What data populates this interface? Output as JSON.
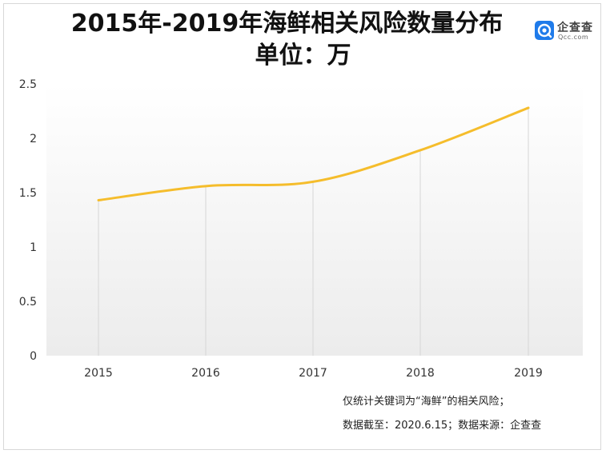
{
  "header": {
    "title_line1": "2015年-2019年海鲜相关风险数量分布",
    "title_line2": "单位：万"
  },
  "logo": {
    "name": "企查查",
    "subtext": "Qcc.com",
    "icon": "qcc-logo-icon",
    "color": "#1f7bea"
  },
  "chart_data": {
    "type": "line",
    "x": [
      "2015",
      "2016",
      "2017",
      "2018",
      "2019"
    ],
    "series": [
      {
        "values": [
          1.43,
          1.56,
          1.6,
          1.89,
          2.28
        ],
        "color": "#f5bd2c"
      }
    ],
    "ylim": [
      0,
      2.5
    ],
    "yticks": [
      "0",
      "0.5",
      "1",
      "1.5",
      "2",
      "2.5"
    ],
    "grid": "vertical lines at each x category",
    "smooth": true
  },
  "notes": {
    "line1": "仅统计关键词为“海鲜”的相关风险；",
    "line2": "数据截至：2020.6.15；数据来源：企查查"
  }
}
